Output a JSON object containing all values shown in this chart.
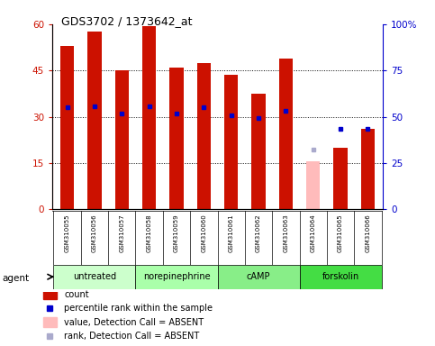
{
  "title": "GDS3702 / 1373642_at",
  "samples": [
    "GSM310055",
    "GSM310056",
    "GSM310057",
    "GSM310058",
    "GSM310059",
    "GSM310060",
    "GSM310061",
    "GSM310062",
    "GSM310063",
    "GSM310064",
    "GSM310065",
    "GSM310066"
  ],
  "count_values": [
    53.0,
    57.5,
    45.0,
    59.5,
    46.0,
    47.5,
    43.5,
    37.5,
    49.0,
    null,
    20.0,
    26.0
  ],
  "rank_values": [
    33.0,
    33.5,
    31.0,
    33.5,
    31.0,
    33.0,
    30.5,
    29.5,
    32.0,
    null,
    26.0,
    26.0
  ],
  "absent_count_values": [
    null,
    null,
    null,
    null,
    null,
    null,
    null,
    null,
    null,
    15.5,
    null,
    null
  ],
  "absent_rank_values": [
    null,
    null,
    null,
    null,
    null,
    null,
    null,
    null,
    null,
    19.5,
    null,
    null
  ],
  "groups": [
    {
      "label": "untreated",
      "start": 0,
      "end": 3,
      "color": "#ccffcc"
    },
    {
      "label": "norepinephrine",
      "start": 3,
      "end": 6,
      "color": "#aaffaa"
    },
    {
      "label": "cAMP",
      "start": 6,
      "end": 9,
      "color": "#88ee88"
    },
    {
      "label": "forskolin",
      "start": 9,
      "end": 12,
      "color": "#44dd44"
    }
  ],
  "ylim_left": [
    0,
    60
  ],
  "ylim_right": [
    0,
    100
  ],
  "yticks_left": [
    0,
    15,
    30,
    45,
    60
  ],
  "ytick_labels_left": [
    "0",
    "15",
    "30",
    "45",
    "60"
  ],
  "yticks_right": [
    0,
    25,
    50,
    75,
    100
  ],
  "ytick_labels_right": [
    "0",
    "25",
    "50",
    "75",
    "100%"
  ],
  "bar_color_red": "#cc1100",
  "bar_color_pink": "#ffbbbb",
  "dot_color_blue": "#0000cc",
  "dot_color_lightblue": "#aaaacc",
  "agent_label": "agent",
  "bg_color": "#d8d8d8",
  "legend": [
    {
      "color": "#cc1100",
      "type": "rect",
      "label": "count"
    },
    {
      "color": "#0000cc",
      "type": "square",
      "label": "percentile rank within the sample"
    },
    {
      "color": "#ffbbbb",
      "type": "rect",
      "label": "value, Detection Call = ABSENT"
    },
    {
      "color": "#aaaacc",
      "type": "square",
      "label": "rank, Detection Call = ABSENT"
    }
  ]
}
